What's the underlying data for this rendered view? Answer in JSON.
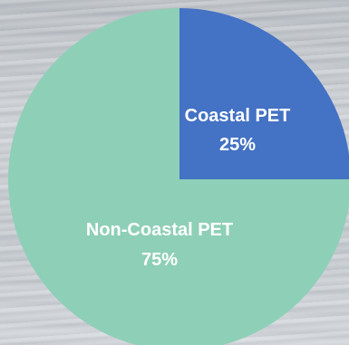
{
  "chart_data": {
    "type": "pie",
    "slices": [
      {
        "label": "Coastal PET",
        "value_label": "25%",
        "value": 25,
        "color": "#4472c4"
      },
      {
        "label": "Non-Coastal PET",
        "value_label": "75%",
        "value": 75,
        "color": "#8ecfb7"
      }
    ]
  }
}
